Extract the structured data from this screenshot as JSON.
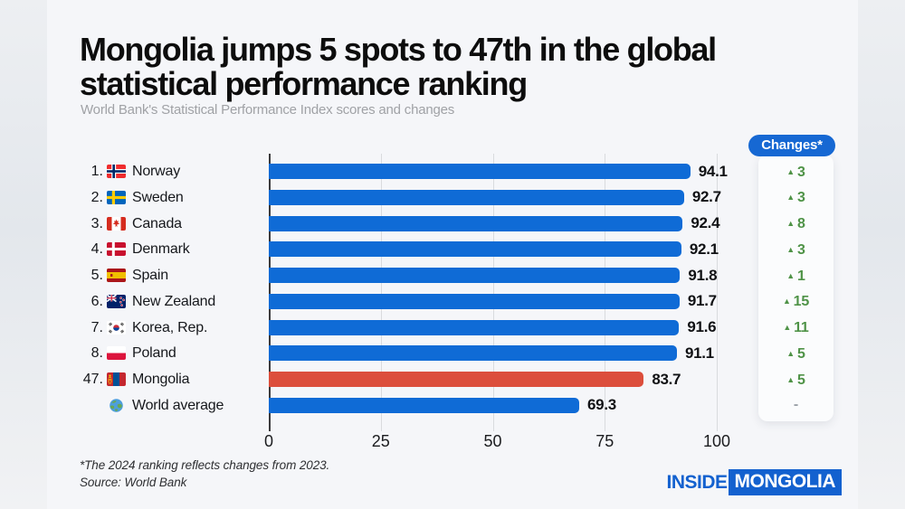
{
  "header": {
    "title_lines": [
      "Mongolia jumps 5 spots to 47th in the global",
      "statistical performance ranking"
    ],
    "subtitle": "World Bank's Statistical Performance Index scores and changes"
  },
  "colors": {
    "bar": "#0f6bd6",
    "highlight": "#dc4e3c",
    "change_up": "#4f9347",
    "change_none": "#9aa0a6",
    "pill": "#1668d3",
    "logo_blue": "#1361cf",
    "canvas_bg": "#f5f6f9"
  },
  "chart_data": {
    "type": "bar",
    "title": "Mongolia jumps 5 spots to 47th in the global statistical performance ranking",
    "subtitle": "World Bank's Statistical Performance Index scores and changes",
    "xlabel": "",
    "ylabel": "",
    "xlim": [
      0,
      100
    ],
    "x_ticks": [
      0,
      25,
      50,
      75,
      100
    ],
    "grid": "vertical",
    "changes_label": "Changes*",
    "rows": [
      {
        "rank": "1.",
        "country": "Norway",
        "flag": "flag-norway",
        "value": 94.1,
        "change": "3",
        "change_dir": "up",
        "color_key": "bar"
      },
      {
        "rank": "2.",
        "country": "Sweden",
        "flag": "flag-sweden",
        "value": 92.7,
        "change": "3",
        "change_dir": "up",
        "color_key": "bar"
      },
      {
        "rank": "3.",
        "country": "Canada",
        "flag": "flag-canada",
        "value": 92.4,
        "change": "8",
        "change_dir": "up",
        "color_key": "bar"
      },
      {
        "rank": "4.",
        "country": "Denmark",
        "flag": "flag-denmark",
        "value": 92.1,
        "change": "3",
        "change_dir": "up",
        "color_key": "bar"
      },
      {
        "rank": "5.",
        "country": "Spain",
        "flag": "flag-spain",
        "value": 91.8,
        "change": "1",
        "change_dir": "up",
        "color_key": "bar"
      },
      {
        "rank": "6.",
        "country": "New Zealand",
        "flag": "flag-new-zealand",
        "value": 91.7,
        "change": "15",
        "change_dir": "up",
        "color_key": "bar"
      },
      {
        "rank": "7.",
        "country": "Korea, Rep.",
        "flag": "flag-korea",
        "value": 91.6,
        "change": "11",
        "change_dir": "up",
        "color_key": "bar"
      },
      {
        "rank": "8.",
        "country": "Poland",
        "flag": "flag-poland",
        "value": 91.1,
        "change": "5",
        "change_dir": "up",
        "color_key": "bar"
      },
      {
        "rank": "47.",
        "country": "Mongolia",
        "flag": "flag-mongolia",
        "value": 83.7,
        "change": "5",
        "change_dir": "up",
        "color_key": "highlight"
      },
      {
        "rank": "",
        "country": "World average",
        "flag": "globe",
        "value": 69.3,
        "change": "-",
        "change_dir": "none",
        "color_key": "bar"
      }
    ]
  },
  "footnotes": {
    "line1": "*The 2024 ranking reflects changes from 2023.",
    "line2": "Source: World Bank"
  },
  "logo": {
    "part1": "INSIDE",
    "part2": "MONGOLIA"
  }
}
